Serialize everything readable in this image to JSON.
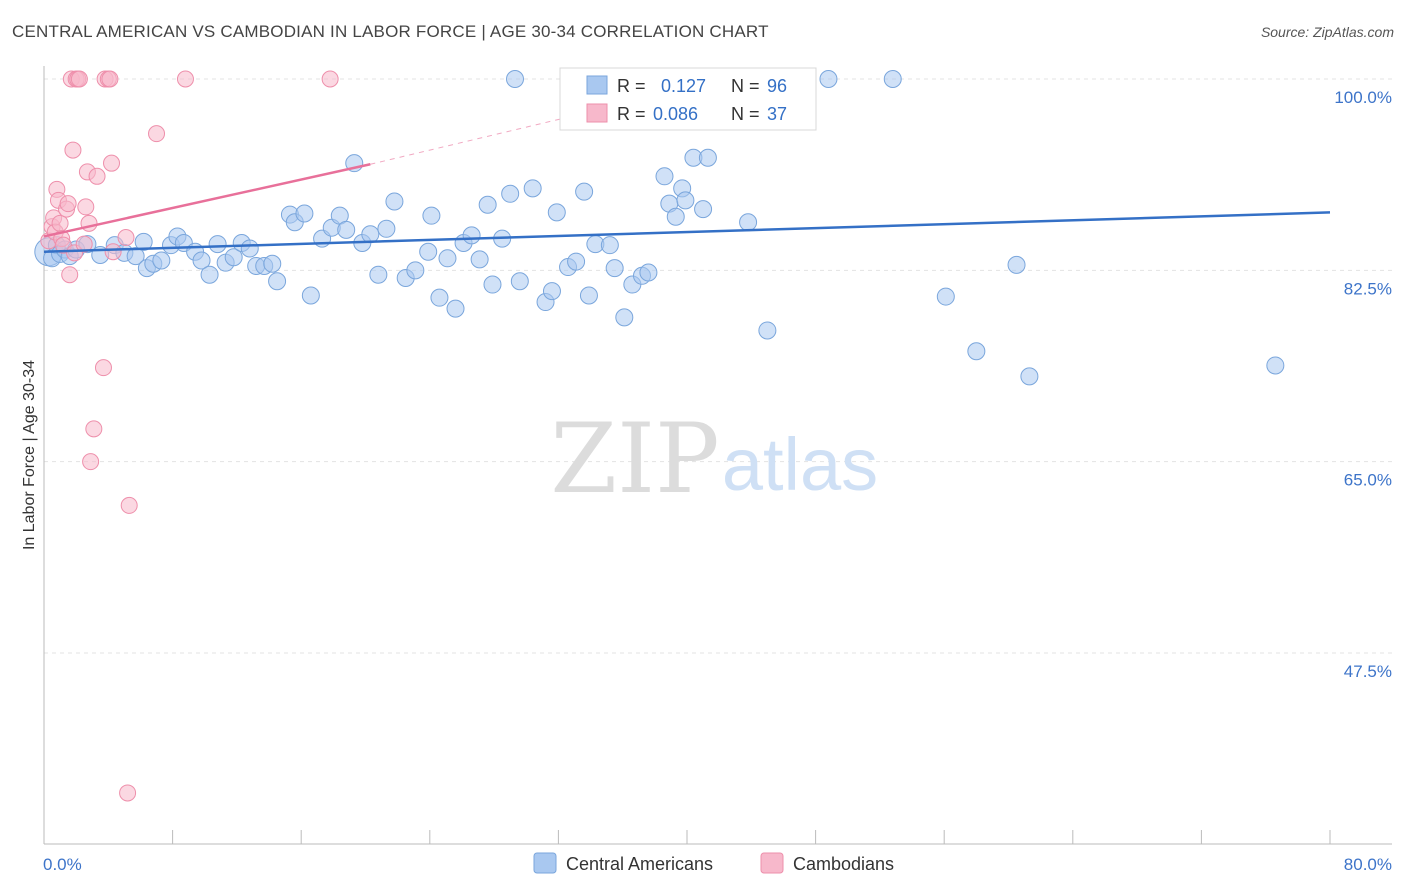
{
  "title": "CENTRAL AMERICAN VS CAMBODIAN IN LABOR FORCE | AGE 30-34 CORRELATION CHART",
  "source": "Source: ZipAtlas.com",
  "watermark": {
    "zip": "ZIP",
    "atlas": "atlas"
  },
  "stats": [
    {
      "r_label": "R = ",
      "r_value": "0.127",
      "n_label": "N = ",
      "n_value": "96",
      "color": "#a9c8f0"
    },
    {
      "r_label": "R = ",
      "r_value": "0.086",
      "n_label": "N = ",
      "n_value": "37",
      "color": "#f7b8cb"
    }
  ],
  "chart_data": {
    "type": "scatter",
    "title": "CENTRAL AMERICAN VS CAMBODIAN IN LABOR FORCE | AGE 30-34 CORRELATION CHART",
    "xlabel": "",
    "ylabel": "In Labor Force | Age 30-34",
    "xlim": [
      0,
      80
    ],
    "ylim": [
      30,
      102
    ],
    "x_tick_labels": [
      {
        "value": 0,
        "label": "0.0%"
      },
      {
        "value": 80,
        "label": "80.0%"
      }
    ],
    "y_tick_labels": [
      {
        "value": 100,
        "label": "100.0%"
      },
      {
        "value": 82.5,
        "label": "82.5%"
      },
      {
        "value": 65,
        "label": "65.0%"
      },
      {
        "value": 47.5,
        "label": "47.5%"
      }
    ],
    "legend": {
      "position": "bottom-center",
      "entries": [
        "Central Americans",
        "Cambodians"
      ]
    },
    "grid": true,
    "series": [
      {
        "name": "Central Americans",
        "color": "#a9c8f0",
        "stroke": "#7aa6dc",
        "trend": {
          "x0": 0,
          "y0": 84.2,
          "x1": 80,
          "y1": 87.8,
          "color": "#3470c6",
          "dashed_to": null
        },
        "points": [
          [
            0.3,
            84.2
          ],
          [
            0.5,
            83.6
          ],
          [
            0.8,
            84.8
          ],
          [
            1.0,
            84.0
          ],
          [
            1.3,
            84.4
          ],
          [
            1.6,
            83.8
          ],
          [
            2.0,
            84.4
          ],
          [
            2.7,
            84.9
          ],
          [
            3.5,
            83.9
          ],
          [
            4.4,
            84.8
          ],
          [
            5.0,
            84.1
          ],
          [
            5.7,
            83.8
          ],
          [
            6.2,
            85.1
          ],
          [
            6.4,
            82.7
          ],
          [
            6.8,
            83.1
          ],
          [
            7.3,
            83.4
          ],
          [
            7.9,
            84.8
          ],
          [
            8.3,
            85.6
          ],
          [
            8.7,
            85.0
          ],
          [
            9.4,
            84.2
          ],
          [
            9.8,
            83.4
          ],
          [
            10.3,
            82.1
          ],
          [
            10.8,
            84.9
          ],
          [
            11.3,
            83.2
          ],
          [
            11.8,
            83.7
          ],
          [
            12.3,
            85.0
          ],
          [
            12.8,
            84.5
          ],
          [
            13.2,
            82.9
          ],
          [
            13.7,
            82.9
          ],
          [
            14.2,
            83.1
          ],
          [
            14.5,
            81.5
          ],
          [
            15.3,
            87.6
          ],
          [
            15.6,
            86.9
          ],
          [
            16.2,
            87.7
          ],
          [
            16.6,
            80.2
          ],
          [
            17.3,
            85.4
          ],
          [
            17.9,
            86.4
          ],
          [
            18.4,
            87.5
          ],
          [
            18.8,
            86.2
          ],
          [
            19.3,
            92.3
          ],
          [
            19.8,
            85.0
          ],
          [
            20.3,
            85.8
          ],
          [
            20.8,
            82.1
          ],
          [
            21.3,
            86.3
          ],
          [
            21.8,
            88.8
          ],
          [
            22.5,
            81.8
          ],
          [
            23.1,
            82.5
          ],
          [
            23.9,
            84.2
          ],
          [
            24.1,
            87.5
          ],
          [
            24.6,
            80.0
          ],
          [
            25.1,
            83.6
          ],
          [
            25.6,
            79.0
          ],
          [
            26.1,
            85.0
          ],
          [
            26.6,
            85.7
          ],
          [
            27.1,
            83.5
          ],
          [
            27.6,
            88.5
          ],
          [
            27.9,
            81.2
          ],
          [
            28.5,
            85.4
          ],
          [
            29.0,
            89.5
          ],
          [
            29.6,
            81.5
          ],
          [
            30.4,
            90.0
          ],
          [
            31.2,
            79.6
          ],
          [
            31.6,
            80.6
          ],
          [
            31.9,
            87.8
          ],
          [
            32.6,
            82.8
          ],
          [
            33.1,
            83.3
          ],
          [
            33.6,
            89.7
          ],
          [
            33.9,
            80.2
          ],
          [
            34.3,
            84.9
          ],
          [
            35.2,
            84.8
          ],
          [
            35.5,
            82.7
          ],
          [
            36.1,
            78.2
          ],
          [
            36.6,
            81.2
          ],
          [
            37.2,
            82.0
          ],
          [
            37.6,
            82.3
          ],
          [
            38.6,
            91.1
          ],
          [
            38.9,
            88.6
          ],
          [
            39.3,
            87.4
          ],
          [
            39.7,
            90.0
          ],
          [
            39.9,
            88.9
          ],
          [
            40.4,
            92.8
          ],
          [
            41.0,
            88.1
          ],
          [
            41.3,
            92.8
          ],
          [
            43.2,
            96.4
          ],
          [
            43.8,
            86.9
          ],
          [
            45.0,
            77.0
          ],
          [
            48.8,
            100.0
          ],
          [
            52.8,
            100.0
          ],
          [
            56.1,
            80.1
          ],
          [
            58.0,
            75.1
          ],
          [
            60.5,
            83.0
          ],
          [
            61.3,
            72.8
          ],
          [
            76.6,
            73.8
          ],
          [
            29.3,
            100.0
          ],
          [
            43.7,
            100.0
          ],
          [
            41.8,
            100.0
          ]
        ]
      },
      {
        "name": "Cambodians",
        "color": "#f7b8cb",
        "stroke": "#ee8fab",
        "trend": {
          "x0": 0,
          "y0": 85.6,
          "x1": 20.3,
          "y1": 92.2,
          "color": "#e8709a",
          "dashed_to": {
            "x": 44,
            "y": 100.5
          }
        },
        "points": [
          [
            0.3,
            85.2
          ],
          [
            0.5,
            86.5
          ],
          [
            0.6,
            87.3
          ],
          [
            0.7,
            86.0
          ],
          [
            0.8,
            89.9
          ],
          [
            0.9,
            88.9
          ],
          [
            1.0,
            86.8
          ],
          [
            1.1,
            85.4
          ],
          [
            1.2,
            84.8
          ],
          [
            1.4,
            88.1
          ],
          [
            1.5,
            88.6
          ],
          [
            1.6,
            82.1
          ],
          [
            1.7,
            100.0
          ],
          [
            1.8,
            93.5
          ],
          [
            1.9,
            84.1
          ],
          [
            2.0,
            100.0
          ],
          [
            2.1,
            100.0
          ],
          [
            2.2,
            100.0
          ],
          [
            2.5,
            84.9
          ],
          [
            2.6,
            88.3
          ],
          [
            2.7,
            91.5
          ],
          [
            2.8,
            86.8
          ],
          [
            2.9,
            65.0
          ],
          [
            3.1,
            68.0
          ],
          [
            3.3,
            91.1
          ],
          [
            3.7,
            73.6
          ],
          [
            3.8,
            100.0
          ],
          [
            4.0,
            100.0
          ],
          [
            4.1,
            100.0
          ],
          [
            4.2,
            92.3
          ],
          [
            5.1,
            85.5
          ],
          [
            5.2,
            34.7
          ],
          [
            5.3,
            61.0
          ],
          [
            7.0,
            95.0
          ],
          [
            8.8,
            100.0
          ],
          [
            17.8,
            100.0
          ],
          [
            4.3,
            84.2
          ]
        ]
      }
    ]
  }
}
